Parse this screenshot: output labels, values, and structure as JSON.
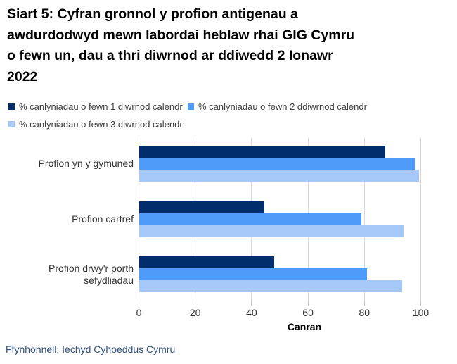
{
  "title_lines": [
    "Siart 5: Cyfran gronnol y profion antigenau a",
    "awdurdodwyd mewn labordai heblaw rhai GIG Cymru",
    "o fewn un, dau a thri diwrnod ar ddiwedd 2 Ionawr",
    "2022"
  ],
  "source_note": "Ffynhonnell: Iechyd Cyhoeddus Cymru",
  "chart_data": {
    "type": "bar",
    "orientation": "horizontal",
    "title": "Siart 5: Cyfran gronnol y profion antigenau a awdurdodwyd mewn labordai heblaw rhai GIG Cymru o fewn un, dau a thri diwrnod ar ddiwedd 2 Ionawr 2022",
    "categories": [
      "Profion yn y gymuned",
      "Profion cartref",
      "Profion drwy'r porth sefydliadau"
    ],
    "series": [
      {
        "name": "% canlyniadau o fewn 1 diwrnod calendr",
        "color": "#002d6b",
        "values": [
          87.5,
          44.5,
          48
        ]
      },
      {
        "name": "% canlyniadau o fewn 2 ddiwrnod calendr",
        "color": "#4f9bfa",
        "values": [
          98,
          79,
          81
        ]
      },
      {
        "name": "% canlyniadau o fewn 3 diwrnod calendr",
        "color": "#a6c8f9",
        "values": [
          99.5,
          94,
          93.5
        ]
      }
    ],
    "xlabel": "Canran",
    "xlim": [
      0,
      100
    ],
    "xticks": [
      0,
      20,
      40,
      60,
      80,
      100
    ],
    "grid": true,
    "legend_position": "top",
    "gridline_color": "#d9d9d9",
    "background_color": "#ffffff"
  }
}
